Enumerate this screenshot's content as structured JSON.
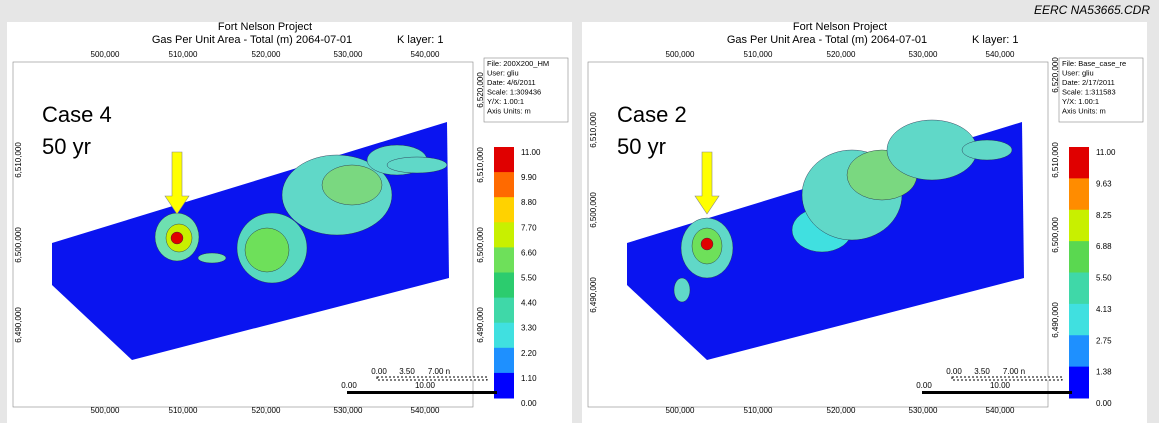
{
  "header": {
    "figure_id": "EERC NA53665.CDR"
  },
  "panels": [
    {
      "title": "Fort Nelson Project",
      "subtitle": "Gas Per Unit Area - Total (m) 2064-07-01",
      "layer": "K layer: 1",
      "case": "Case 4",
      "duration": "50 yr",
      "x_labels": [
        "500,000",
        "510,000",
        "520,000",
        "530,000",
        "540,000"
      ],
      "left_y_labels": [
        "6,510,000",
        "6,500,000",
        "6,490,000"
      ],
      "right_y_labels": [
        "6,520,000",
        "6,510,000",
        "6,500,000",
        "6,490,000"
      ],
      "info": [
        "File: 200X200_HM",
        "User: gliu",
        "Date: 4/6/2011",
        "Scale: 1:309436",
        "Y/X: 1.00:1",
        "Axis Units: m"
      ],
      "legend": [
        "11.00",
        "9.90",
        "8.80",
        "7.70",
        "6.60",
        "5.50",
        "4.40",
        "3.30",
        "2.20",
        "1.10",
        "0.00"
      ],
      "scale_miles": [
        "0.00",
        "3.50",
        "7.00 n"
      ],
      "scale_km": [
        "0.00",
        "10.00"
      ]
    },
    {
      "title": "Fort Nelson Project",
      "subtitle": "Gas Per Unit Area - Total (m) 2064-07-01",
      "layer": "K layer: 1",
      "case": "Case 2",
      "duration": "50 yr",
      "x_labels": [
        "500,000",
        "510,000",
        "520,000",
        "530,000",
        "540,000"
      ],
      "left_y_labels": [
        "6,510,000",
        "6,500,000",
        "6,490,000"
      ],
      "right_y_labels": [
        "6,520,000",
        "6,510,000",
        "6,500,000",
        "6,490,000"
      ],
      "info": [
        "File: Base_case_re",
        "User: gliu",
        "Date: 2/17/2011",
        "Scale: 1:311583",
        "Y/X: 1.00:1",
        "Axis Units: m"
      ],
      "legend": [
        "11.00",
        "9.63",
        "8.25",
        "6.88",
        "5.50",
        "4.13",
        "2.75",
        "1.38",
        "0.00"
      ],
      "scale_miles": [
        "0.00",
        "3.50",
        "7.00 n"
      ],
      "scale_km": [
        "0.00",
        "10.00"
      ]
    }
  ]
}
